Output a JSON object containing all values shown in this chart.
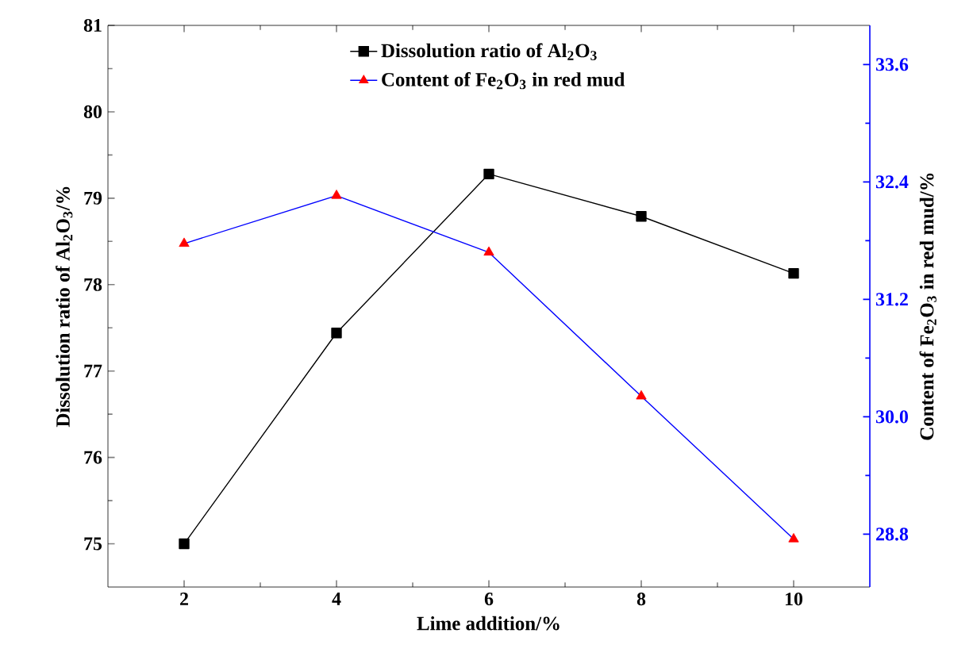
{
  "chart_data": {
    "type": "line",
    "xlabel": "Lime addition/%",
    "ylabel": "Dissolution ratio of Al$_{2}$O$_{3}$/%",
    "y2label": "Content of Fe$_{2}$O$_{3}$ in red mud/%",
    "x": [
      2,
      4,
      6,
      8,
      10
    ],
    "series": [
      {
        "name": "Dissolution ratio of Al$_{2}$O$_{3}$",
        "color": "#000000",
        "marker": "square",
        "values": [
          75.0,
          77.44,
          79.28,
          78.79,
          78.13
        ]
      },
      {
        "name": "Content of Fe$_{2}$O$_{3}$ in red mud",
        "color": "#0000ff",
        "colors": [
          "#ff0000",
          "#ff0000",
          "#ff0000",
          "#ff0000",
          "#ff0000"
        ],
        "marker": "triangle",
        "axis": "y2",
        "values": [
          31.77,
          32.26,
          31.68,
          30.21,
          28.75
        ]
      }
    ],
    "xlim": [
      1,
      11
    ],
    "xticks": [
      2,
      4,
      6,
      8,
      10
    ],
    "ylim": [
      74.5,
      81
    ],
    "yticks": [
      75,
      76,
      77,
      78,
      79,
      80,
      81
    ],
    "y2lim": [
      28.26,
      34.0
    ],
    "y2ticks": [
      {
        "value": 28.8,
        "label": "28.8"
      },
      {
        "value": 30.0,
        "label": "30.0"
      },
      {
        "value": 31.2,
        "label": "31.2"
      },
      {
        "value": 32.4,
        "label": "32.4"
      },
      {
        "value": 33.6,
        "label": "33.6"
      }
    ],
    "grid": false,
    "legend": "top",
    "line_style": "solid"
  }
}
